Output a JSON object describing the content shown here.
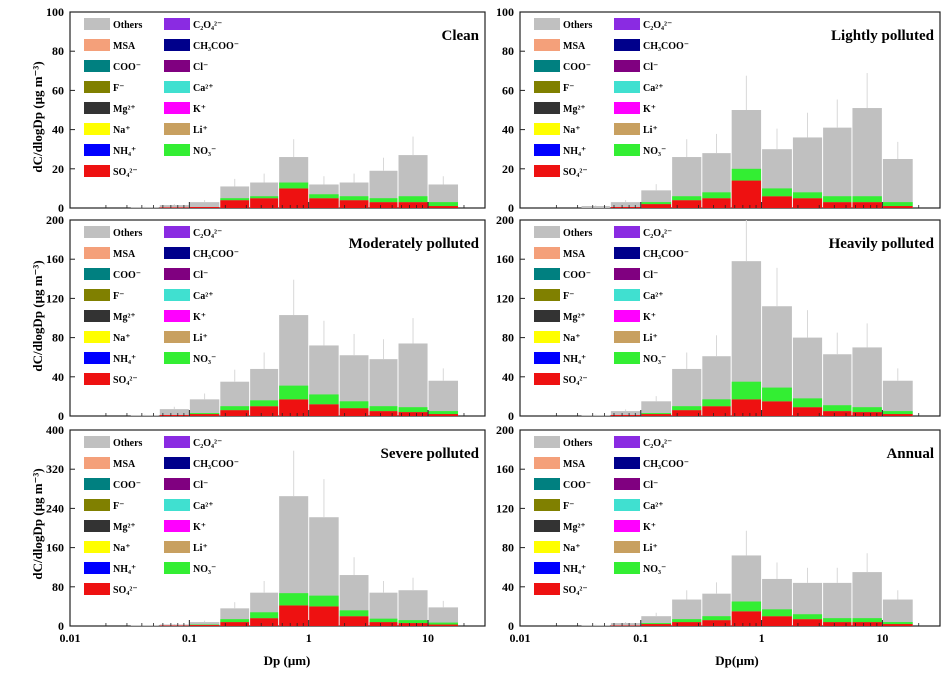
{
  "figure": {
    "ylabel": "dC/dlogDp (μg m⁻³)",
    "xlabel_left": "Dp (μm)",
    "xlabel_right": "Dp(μm)"
  },
  "legend": [
    {
      "label": "Others",
      "color": "#c0c0c0"
    },
    {
      "label": "C₂O₄²⁻",
      "color": "#8a2be2"
    },
    {
      "label": "MSA",
      "color": "#f4a07a"
    },
    {
      "label": "CH₃COO⁻",
      "color": "#00008b"
    },
    {
      "label": "COO⁻",
      "color": "#008080"
    },
    {
      "label": "Cl⁻",
      "color": "#800080"
    },
    {
      "label": "F⁻",
      "color": "#808000"
    },
    {
      "label": "Ca²⁺",
      "color": "#40e0d0"
    },
    {
      "label": "Mg²⁺",
      "color": "#333333"
    },
    {
      "label": "K⁺",
      "color": "#ff00ff"
    },
    {
      "label": "Na⁺",
      "color": "#ffff00"
    },
    {
      "label": "Li⁺",
      "color": "#c8a060"
    },
    {
      "label": "NH₄⁺",
      "color": "#0000ff"
    },
    {
      "label": "NO₃⁻",
      "color": "#33ee33"
    },
    {
      "label": "SO₄²⁻",
      "color": "#ee1111"
    }
  ],
  "chart_data": [
    {
      "type": "bar",
      "title": "Clean",
      "xscale": "log",
      "xlim": [
        0.01,
        30
      ],
      "ylim": [
        0,
        100
      ],
      "yticks": [
        0,
        20,
        40,
        60,
        80,
        100
      ],
      "xticks": [
        {
          "v": 0.01,
          "label": "0.01"
        },
        {
          "v": 0.1,
          "label": "0.1"
        },
        {
          "v": 1,
          "label": "1"
        },
        {
          "v": 10,
          "label": "10"
        }
      ],
      "show_xticklabels": false,
      "bins": [
        [
          0.032,
          0.056
        ],
        [
          0.056,
          0.1
        ],
        [
          0.1,
          0.18
        ],
        [
          0.18,
          0.32
        ],
        [
          0.32,
          0.56
        ],
        [
          0.56,
          1.0
        ],
        [
          1.0,
          1.8
        ],
        [
          1.8,
          3.2
        ],
        [
          3.2,
          5.6
        ],
        [
          5.6,
          10
        ],
        [
          10,
          18
        ]
      ],
      "totals": [
        0.5,
        1.5,
        3,
        11,
        13,
        26,
        12,
        13,
        19,
        27,
        12
      ],
      "stack": {
        "SO₄²⁻": [
          0,
          0.3,
          0.5,
          4,
          5,
          10,
          5,
          4,
          3,
          3,
          1
        ],
        "NO₃⁻": [
          0,
          0,
          0,
          1,
          1,
          3,
          2,
          2,
          2,
          3,
          2
        ]
      }
    },
    {
      "type": "bar",
      "title": "Lightly polluted",
      "xscale": "log",
      "xlim": [
        0.01,
        30
      ],
      "ylim": [
        0,
        100
      ],
      "yticks": [
        0,
        20,
        40,
        60,
        80,
        100
      ],
      "xticks": [
        {
          "v": 0.01,
          "label": "0.01"
        },
        {
          "v": 0.1,
          "label": "0.1"
        },
        {
          "v": 1,
          "label": "1"
        },
        {
          "v": 10,
          "label": "10"
        }
      ],
      "show_xticklabels": false,
      "bins": [
        [
          0.032,
          0.056
        ],
        [
          0.056,
          0.1
        ],
        [
          0.1,
          0.18
        ],
        [
          0.18,
          0.32
        ],
        [
          0.32,
          0.56
        ],
        [
          0.56,
          1.0
        ],
        [
          1.0,
          1.8
        ],
        [
          1.8,
          3.2
        ],
        [
          3.2,
          5.6
        ],
        [
          5.6,
          10
        ],
        [
          10,
          18
        ]
      ],
      "totals": [
        1,
        3,
        9,
        26,
        28,
        50,
        30,
        36,
        41,
        51,
        25
      ],
      "stack": {
        "SO₄²⁻": [
          0,
          0.5,
          2,
          4,
          5,
          14,
          6,
          5,
          3,
          3,
          1
        ],
        "NO₃⁻": [
          0,
          0,
          1,
          2,
          3,
          6,
          4,
          3,
          3,
          3,
          2
        ]
      }
    },
    {
      "type": "bar",
      "title": "Moderately polluted",
      "xscale": "log",
      "xlim": [
        0.01,
        30
      ],
      "ylim": [
        0,
        200
      ],
      "yticks": [
        0,
        40,
        80,
        120,
        160,
        200
      ],
      "xticks": [
        {
          "v": 0.01,
          "label": "0.01"
        },
        {
          "v": 0.1,
          "label": "0.1"
        },
        {
          "v": 1,
          "label": "1"
        },
        {
          "v": 10,
          "label": "10"
        }
      ],
      "show_xticklabels": false,
      "bins": [
        [
          0.032,
          0.056
        ],
        [
          0.056,
          0.1
        ],
        [
          0.1,
          0.18
        ],
        [
          0.18,
          0.32
        ],
        [
          0.32,
          0.56
        ],
        [
          0.56,
          1.0
        ],
        [
          1.0,
          1.8
        ],
        [
          1.8,
          3.2
        ],
        [
          3.2,
          5.6
        ],
        [
          5.6,
          10
        ],
        [
          10,
          18
        ]
      ],
      "totals": [
        1,
        7,
        17,
        35,
        48,
        103,
        72,
        62,
        58,
        74,
        36
      ],
      "stack": {
        "SO₄²⁻": [
          0,
          1,
          2,
          6,
          10,
          17,
          12,
          8,
          5,
          4,
          2
        ],
        "NO₃⁻": [
          0,
          0,
          1,
          4,
          6,
          14,
          10,
          7,
          5,
          5,
          3
        ]
      }
    },
    {
      "type": "bar",
      "title": "Heavily polluted",
      "xscale": "log",
      "xlim": [
        0.01,
        30
      ],
      "ylim": [
        0,
        200
      ],
      "yticks": [
        0,
        40,
        80,
        120,
        160,
        200
      ],
      "xticks": [
        {
          "v": 0.01,
          "label": "0.01"
        },
        {
          "v": 0.1,
          "label": "0.1"
        },
        {
          "v": 1,
          "label": "1"
        },
        {
          "v": 10,
          "label": "10"
        }
      ],
      "show_xticklabels": false,
      "bins": [
        [
          0.032,
          0.056
        ],
        [
          0.056,
          0.1
        ],
        [
          0.1,
          0.18
        ],
        [
          0.18,
          0.32
        ],
        [
          0.32,
          0.56
        ],
        [
          0.56,
          1.0
        ],
        [
          1.0,
          1.8
        ],
        [
          1.8,
          3.2
        ],
        [
          3.2,
          5.6
        ],
        [
          5.6,
          10
        ],
        [
          10,
          18
        ]
      ],
      "totals": [
        1,
        5,
        15,
        48,
        61,
        158,
        112,
        80,
        63,
        70,
        36
      ],
      "stack": {
        "SO₄²⁻": [
          0,
          1,
          2,
          6,
          10,
          17,
          15,
          9,
          5,
          4,
          2
        ],
        "NO₃⁻": [
          0,
          0,
          1,
          4,
          7,
          18,
          14,
          9,
          6,
          5,
          3
        ]
      }
    },
    {
      "type": "bar",
      "title": "Severe polluted",
      "xscale": "log",
      "xlim": [
        0.01,
        30
      ],
      "ylim": [
        0,
        400
      ],
      "yticks": [
        0,
        80,
        160,
        240,
        320,
        400
      ],
      "xticks": [
        {
          "v": 0.01,
          "label": "0.01"
        },
        {
          "v": 0.1,
          "label": "0.1"
        },
        {
          "v": 1,
          "label": "1"
        },
        {
          "v": 10,
          "label": "10"
        }
      ],
      "show_xticklabels": true,
      "bins": [
        [
          0.032,
          0.056
        ],
        [
          0.056,
          0.1
        ],
        [
          0.1,
          0.18
        ],
        [
          0.18,
          0.32
        ],
        [
          0.32,
          0.56
        ],
        [
          0.56,
          1.0
        ],
        [
          1.0,
          1.8
        ],
        [
          1.8,
          3.2
        ],
        [
          3.2,
          5.6
        ],
        [
          5.6,
          10
        ],
        [
          10,
          18
        ]
      ],
      "totals": [
        1,
        3,
        8,
        36,
        68,
        265,
        222,
        104,
        68,
        73,
        38
      ],
      "stack": {
        "SO₄²⁻": [
          0,
          1,
          2,
          8,
          16,
          42,
          40,
          20,
          8,
          6,
          3
        ],
        "NO₃⁻": [
          0,
          0,
          1,
          6,
          12,
          25,
          22,
          12,
          7,
          6,
          4
        ]
      }
    },
    {
      "type": "bar",
      "title": "Annual",
      "xscale": "log",
      "xlim": [
        0.01,
        30
      ],
      "ylim": [
        0,
        200
      ],
      "yticks": [
        0,
        40,
        80,
        120,
        160,
        200
      ],
      "xticks": [
        {
          "v": 0.01,
          "label": "0.01"
        },
        {
          "v": 0.1,
          "label": "0.1"
        },
        {
          "v": 1,
          "label": "1"
        },
        {
          "v": 10,
          "label": "10"
        }
      ],
      "show_xticklabels": true,
      "bins": [
        [
          0.032,
          0.056
        ],
        [
          0.056,
          0.1
        ],
        [
          0.1,
          0.18
        ],
        [
          0.18,
          0.32
        ],
        [
          0.32,
          0.56
        ],
        [
          0.56,
          1.0
        ],
        [
          1.0,
          1.8
        ],
        [
          1.8,
          3.2
        ],
        [
          3.2,
          5.6
        ],
        [
          5.6,
          10
        ],
        [
          10,
          18
        ]
      ],
      "totals": [
        1,
        3,
        10,
        27,
        33,
        72,
        48,
        44,
        44,
        55,
        27
      ],
      "stack": {
        "SO₄²⁻": [
          0,
          0.5,
          2,
          4,
          6,
          15,
          10,
          7,
          4,
          4,
          2
        ],
        "NO₃⁻": [
          0,
          0,
          1,
          3,
          4,
          10,
          7,
          5,
          4,
          4,
          2
        ]
      }
    }
  ]
}
